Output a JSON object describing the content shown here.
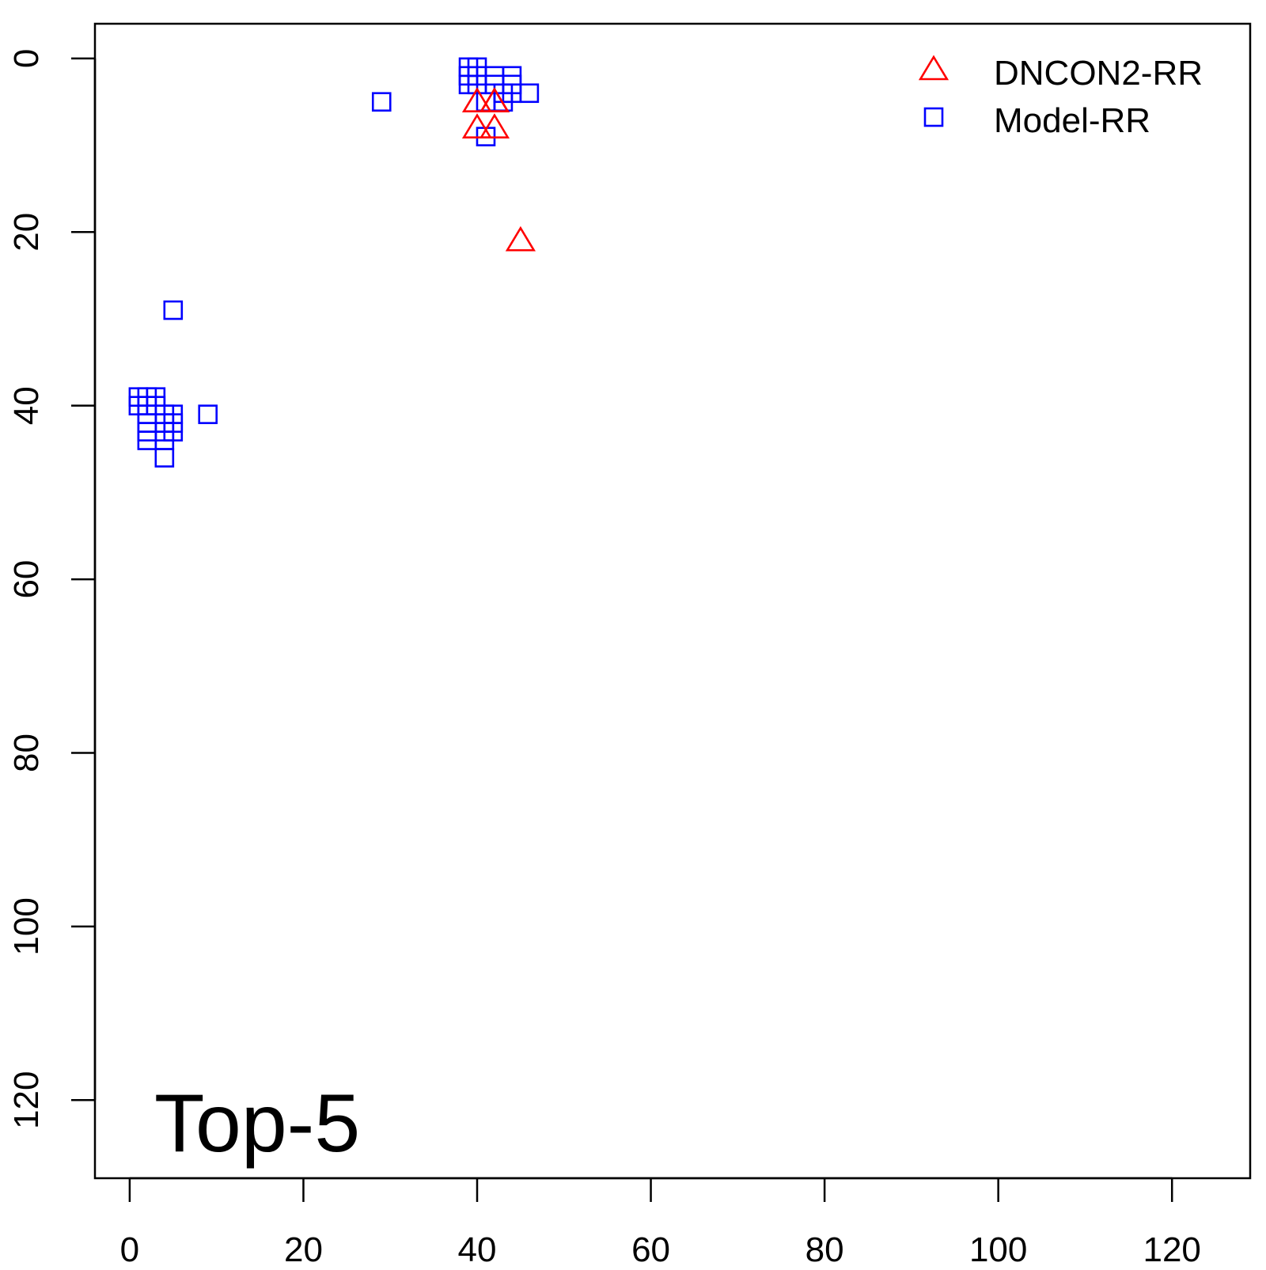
{
  "chart_data": {
    "type": "scatter",
    "annotation": "Top-5",
    "x_ticks": [
      "0",
      "20",
      "40",
      "60",
      "80",
      "100",
      "120"
    ],
    "y_ticks": [
      "0",
      "20",
      "40",
      "60",
      "80",
      "100",
      "120"
    ],
    "x_tick_values": [
      0,
      20,
      40,
      60,
      80,
      100,
      120
    ],
    "y_tick_values": [
      0,
      20,
      40,
      60,
      80,
      100,
      120
    ],
    "xlim": [
      -4,
      129
    ],
    "ylim": [
      -4,
      129
    ],
    "y_reversed": true,
    "legend_position": "top-right",
    "series": [
      {
        "name": "DNCON2-RR",
        "marker": "triangle",
        "color": "#ff0000",
        "points": [
          [
            40,
            5
          ],
          [
            42,
            5
          ],
          [
            42,
            5
          ],
          [
            40,
            8
          ],
          [
            42,
            8
          ],
          [
            45,
            21
          ]
        ]
      },
      {
        "name": "Model-RR",
        "marker": "square",
        "color": "#0000ff",
        "points": [
          [
            39,
            1
          ],
          [
            40,
            1
          ],
          [
            39,
            2
          ],
          [
            40,
            2
          ],
          [
            39,
            3
          ],
          [
            40,
            3
          ],
          [
            42,
            2
          ],
          [
            44,
            2
          ],
          [
            42,
            3
          ],
          [
            44,
            3
          ],
          [
            43,
            4
          ],
          [
            44,
            4
          ],
          [
            46,
            4
          ],
          [
            41,
            5
          ],
          [
            43,
            5
          ],
          [
            41,
            9
          ],
          [
            29,
            5
          ],
          [
            5,
            29
          ],
          [
            1,
            39
          ],
          [
            2,
            39
          ],
          [
            3,
            39
          ],
          [
            1,
            40
          ],
          [
            2,
            40
          ],
          [
            3,
            40
          ],
          [
            2,
            41
          ],
          [
            4,
            41
          ],
          [
            5,
            41
          ],
          [
            9,
            41
          ],
          [
            2,
            42
          ],
          [
            4,
            42
          ],
          [
            5,
            42
          ],
          [
            2,
            43
          ],
          [
            4,
            43
          ],
          [
            5,
            43
          ],
          [
            2,
            44
          ],
          [
            4,
            44
          ],
          [
            4,
            46
          ]
        ]
      }
    ]
  }
}
